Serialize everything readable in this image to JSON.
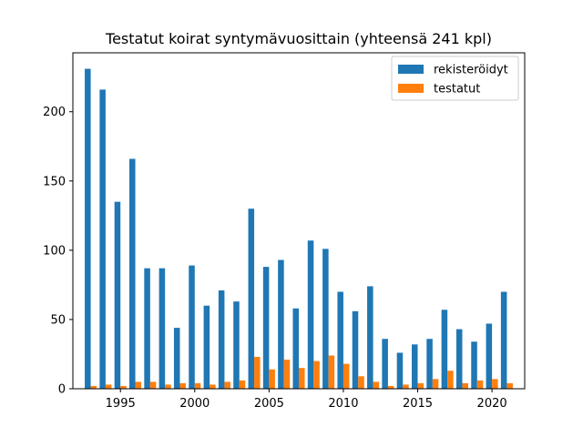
{
  "chart_data": {
    "type": "bar",
    "title": "Testatut koirat syntymävuosittain (yhteensä 241 kpl)",
    "xlabel": "",
    "ylabel": "",
    "x": [
      1993,
      1994,
      1995,
      1996,
      1997,
      1998,
      1999,
      2000,
      2001,
      2002,
      2003,
      2004,
      2005,
      2006,
      2007,
      2008,
      2009,
      2010,
      2011,
      2012,
      2013,
      2014,
      2015,
      2016,
      2017,
      2018,
      2019,
      2020,
      2021
    ],
    "series": [
      {
        "name": "rekisteröidyt",
        "color": "#1f77b4",
        "values": [
          231,
          216,
          135,
          166,
          87,
          87,
          44,
          89,
          60,
          71,
          63,
          130,
          88,
          93,
          58,
          107,
          101,
          70,
          56,
          74,
          36,
          26,
          32,
          36,
          57,
          43,
          34,
          47,
          70
        ]
      },
      {
        "name": "testatut",
        "color": "#ff7f0e",
        "values": [
          2,
          3,
          2,
          5,
          5,
          3,
          4,
          4,
          3,
          5,
          6,
          23,
          14,
          21,
          15,
          20,
          24,
          18,
          9,
          5,
          2,
          3,
          4,
          7,
          13,
          4,
          6,
          7,
          4
        ]
      }
    ],
    "xticks": [
      1995,
      2000,
      2005,
      2010,
      2015,
      2020
    ],
    "yticks": [
      0,
      50,
      100,
      150,
      200
    ],
    "xlim": [
      1991.8,
      2022.2
    ],
    "ylim": [
      0,
      242.55
    ],
    "grid": false,
    "legend_position": "top-right"
  }
}
